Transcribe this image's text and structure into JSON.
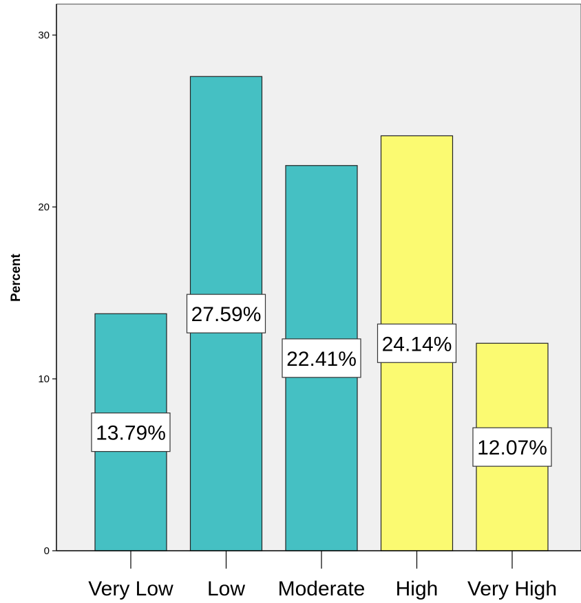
{
  "chart_data": {
    "type": "bar",
    "categories": [
      "Very Low",
      "Low",
      "Moderate",
      "High",
      "Very High"
    ],
    "values": [
      13.79,
      27.59,
      22.41,
      24.14,
      12.07
    ],
    "data_labels": [
      "13.79%",
      "27.59%",
      "22.41%",
      "24.14%",
      "12.07%"
    ],
    "bar_colors": [
      "#45c0c3",
      "#45c0c3",
      "#45c0c3",
      "#fbfa71",
      "#fbfa71"
    ],
    "ylabel": "Percent",
    "xlabel": "",
    "ylim": [
      0,
      31.8
    ],
    "yticks": [
      0,
      10,
      20,
      30
    ],
    "ytick_labels": [
      "0",
      "10",
      "20",
      "30"
    ],
    "grid": false,
    "legend": "none",
    "plot_background": "#f0f0f0"
  }
}
